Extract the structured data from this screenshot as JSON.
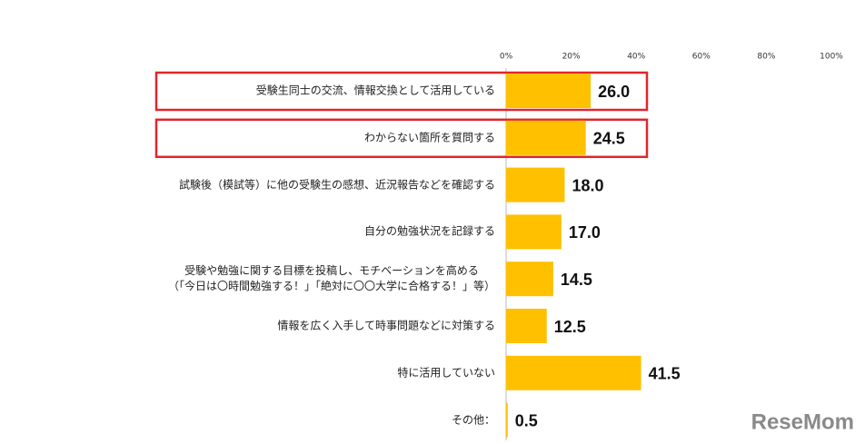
{
  "chart_data": {
    "type": "bar",
    "orientation": "horizontal",
    "categories": [
      "受験生同士の交流、情報交換として活用している",
      "わからない箇所を質問する",
      "試験後（模試等）に他の受験生の感想、近況報告などを確認する",
      "自分の勉強状況を記録する",
      "受験や勉強に関する目標を投稿し、モチベーションを高める\n（「今日は〇時間勉強する！」「絶対に〇〇大学に合格する！」等）",
      "情報を広く入手して時事問題などに対策する",
      "特に活用していない",
      "その他："
    ],
    "values": [
      26.0,
      24.5,
      18.0,
      17.0,
      14.5,
      12.5,
      41.5,
      0.5
    ],
    "value_labels": [
      "26.0",
      "24.5",
      "18.0",
      "17.0",
      "14.5",
      "12.5",
      "41.5",
      "0.5"
    ],
    "color": "#ffc000",
    "xlim": [
      0,
      100
    ],
    "xticks": [
      {
        "value": 0,
        "label": "0%"
      },
      {
        "value": 20,
        "label": "20%"
      },
      {
        "value": 40,
        "label": "40%"
      },
      {
        "value": 60,
        "label": "60%"
      },
      {
        "value": 80,
        "label": "80%"
      },
      {
        "value": 100,
        "label": "100%"
      }
    ],
    "highlight": [
      true,
      true,
      false,
      false,
      false,
      false,
      false,
      false
    ],
    "highlight_color": "#e0262b",
    "watermark": "ReseMom"
  }
}
